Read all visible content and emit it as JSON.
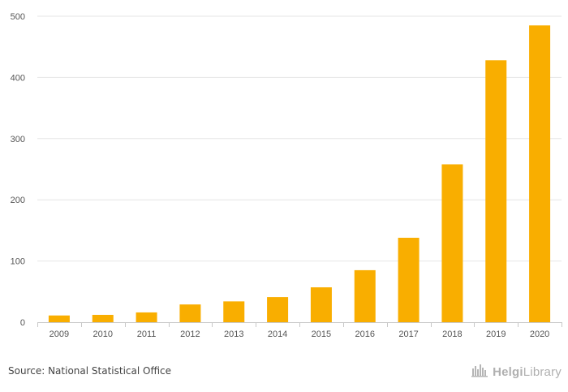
{
  "chart_data": {
    "type": "bar",
    "title": "",
    "xlabel": "",
    "ylabel": "",
    "categories": [
      "2009",
      "2010",
      "2011",
      "2012",
      "2013",
      "2014",
      "2015",
      "2016",
      "2017",
      "2018",
      "2019",
      "2020"
    ],
    "values": [
      11,
      12,
      16,
      29,
      34,
      41,
      57,
      85,
      138,
      258,
      428,
      485
    ],
    "ylim": [
      0,
      500
    ],
    "yticks": [
      0,
      100,
      200,
      300,
      400,
      500
    ],
    "grid": true,
    "bar_color": "#f9ae00",
    "grid_color": "#e6e6e6",
    "axis_color": "#c8c8c8"
  },
  "footer": {
    "source": "Source: National Statistical Office",
    "brand_part1": "Helgi",
    "brand_part2": "Library",
    "brand_icon": "helgi-library-logo-icon"
  }
}
